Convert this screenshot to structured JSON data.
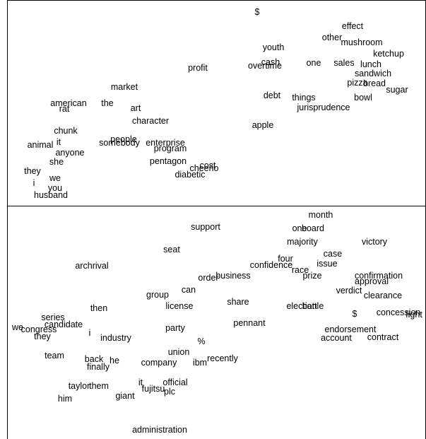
{
  "chart_data": [
    {
      "type": "scatter",
      "title": "",
      "xlabel": "",
      "ylabel": "",
      "axes_visible": false,
      "grid": false,
      "xlim": [
        0,
        600
      ],
      "ylim": [
        0,
        290
      ],
      "points": [
        {
          "label": "$",
          "x": 364,
          "y": 273
        },
        {
          "label": "effect",
          "x": 499,
          "y": 253
        },
        {
          "label": "other",
          "x": 470,
          "y": 237
        },
        {
          "label": "mushroom",
          "x": 512,
          "y": 230
        },
        {
          "label": "youth",
          "x": 387,
          "y": 223
        },
        {
          "label": "ketchup",
          "x": 550,
          "y": 214
        },
        {
          "label": "cash",
          "x": 383,
          "y": 202
        },
        {
          "label": "overtime",
          "x": 375,
          "y": 197
        },
        {
          "label": "one",
          "x": 444,
          "y": 201
        },
        {
          "label": "sales",
          "x": 487,
          "y": 201
        },
        {
          "label": "lunch",
          "x": 525,
          "y": 199
        },
        {
          "label": "sandwich",
          "x": 528,
          "y": 186
        },
        {
          "label": "profit",
          "x": 280,
          "y": 194
        },
        {
          "label": "pizza",
          "x": 506,
          "y": 173
        },
        {
          "label": "bread",
          "x": 530,
          "y": 172
        },
        {
          "label": "sugar",
          "x": 562,
          "y": 163
        },
        {
          "label": "market",
          "x": 176,
          "y": 167
        },
        {
          "label": "debt",
          "x": 385,
          "y": 155
        },
        {
          "label": "things",
          "x": 430,
          "y": 152
        },
        {
          "label": "bowl",
          "x": 514,
          "y": 152
        },
        {
          "label": "american",
          "x": 97,
          "y": 144
        },
        {
          "label": "the",
          "x": 152,
          "y": 144
        },
        {
          "label": "rat",
          "x": 91,
          "y": 136
        },
        {
          "label": "art",
          "x": 192,
          "y": 137
        },
        {
          "label": "jurisprudence",
          "x": 458,
          "y": 138
        },
        {
          "label": "character",
          "x": 213,
          "y": 119
        },
        {
          "label": "apple",
          "x": 372,
          "y": 113
        },
        {
          "label": "chunk",
          "x": 93,
          "y": 105
        },
        {
          "label": "people",
          "x": 175,
          "y": 93
        },
        {
          "label": "it",
          "x": 83,
          "y": 89
        },
        {
          "label": "somebody",
          "x": 169,
          "y": 88
        },
        {
          "label": "enterprise",
          "x": 234,
          "y": 88
        },
        {
          "label": "animal",
          "x": 57,
          "y": 85
        },
        {
          "label": "program",
          "x": 241,
          "y": 80
        },
        {
          "label": "anyone",
          "x": 99,
          "y": 74
        },
        {
          "label": "she",
          "x": 80,
          "y": 61
        },
        {
          "label": "pentagon",
          "x": 238,
          "y": 62
        },
        {
          "label": "cost",
          "x": 294,
          "y": 56
        },
        {
          "label": "cheerio",
          "x": 289,
          "y": 52
        },
        {
          "label": "they",
          "x": 46,
          "y": 48
        },
        {
          "label": "diabetic",
          "x": 269,
          "y": 43
        },
        {
          "label": "we",
          "x": 78,
          "y": 38
        },
        {
          "label": "i",
          "x": 48,
          "y": 31
        },
        {
          "label": "you",
          "x": 78,
          "y": 24
        },
        {
          "label": "husband",
          "x": 72,
          "y": 14
        }
      ]
    },
    {
      "type": "scatter",
      "title": "",
      "xlabel": "",
      "ylabel": "",
      "axes_visible": false,
      "grid": false,
      "xlim": [
        0,
        600
      ],
      "ylim": [
        0,
        330
      ],
      "points": [
        {
          "label": "month",
          "x": 454,
          "y": 317
        },
        {
          "label": "support",
          "x": 291,
          "y": 300
        },
        {
          "label": "one",
          "x": 424,
          "y": 298
        },
        {
          "label": "board",
          "x": 443,
          "y": 298
        },
        {
          "label": "majority",
          "x": 428,
          "y": 279
        },
        {
          "label": "victory",
          "x": 530,
          "y": 279
        },
        {
          "label": "seat",
          "x": 243,
          "y": 268
        },
        {
          "label": "case",
          "x": 471,
          "y": 262
        },
        {
          "label": "four",
          "x": 404,
          "y": 255
        },
        {
          "label": "issue",
          "x": 463,
          "y": 248
        },
        {
          "label": "archrival",
          "x": 130,
          "y": 245
        },
        {
          "label": "confidence",
          "x": 384,
          "y": 246
        },
        {
          "label": "race",
          "x": 425,
          "y": 239
        },
        {
          "label": "business",
          "x": 330,
          "y": 231
        },
        {
          "label": "order",
          "x": 295,
          "y": 228
        },
        {
          "label": "prize",
          "x": 442,
          "y": 231
        },
        {
          "label": "confirmation",
          "x": 536,
          "y": 231
        },
        {
          "label": "approval",
          "x": 526,
          "y": 223
        },
        {
          "label": "can",
          "x": 267,
          "y": 211
        },
        {
          "label": "verdict",
          "x": 494,
          "y": 210
        },
        {
          "label": "group",
          "x": 223,
          "y": 204
        },
        {
          "label": "clearance",
          "x": 542,
          "y": 203
        },
        {
          "label": "share",
          "x": 337,
          "y": 194
        },
        {
          "label": "license",
          "x": 254,
          "y": 188
        },
        {
          "label": "election",
          "x": 427,
          "y": 188
        },
        {
          "label": "battle",
          "x": 443,
          "y": 188
        },
        {
          "label": "then",
          "x": 140,
          "y": 185
        },
        {
          "label": "$",
          "x": 502,
          "y": 177
        },
        {
          "label": "concession",
          "x": 564,
          "y": 179
        },
        {
          "label": "fight",
          "x": 586,
          "y": 176
        },
        {
          "label": "series",
          "x": 75,
          "y": 172
        },
        {
          "label": "pennant",
          "x": 353,
          "y": 164
        },
        {
          "label": "candidate",
          "x": 90,
          "y": 162
        },
        {
          "label": "we",
          "x": 25,
          "y": 158
        },
        {
          "label": "congress",
          "x": 55,
          "y": 155
        },
        {
          "label": "party",
          "x": 248,
          "y": 157
        },
        {
          "label": "endorsement",
          "x": 496,
          "y": 155
        },
        {
          "label": "i",
          "x": 127,
          "y": 150
        },
        {
          "label": "they",
          "x": 60,
          "y": 145
        },
        {
          "label": "industry",
          "x": 164,
          "y": 143
        },
        {
          "label": "account",
          "x": 476,
          "y": 143
        },
        {
          "label": "contract",
          "x": 542,
          "y": 144
        },
        {
          "label": "%",
          "x": 285,
          "y": 138
        },
        {
          "label": "union",
          "x": 253,
          "y": 123
        },
        {
          "label": "team",
          "x": 77,
          "y": 118
        },
        {
          "label": "recently",
          "x": 315,
          "y": 114
        },
        {
          "label": "back",
          "x": 133,
          "y": 113
        },
        {
          "label": "he",
          "x": 162,
          "y": 111
        },
        {
          "label": "company",
          "x": 225,
          "y": 108
        },
        {
          "label": "ibm",
          "x": 283,
          "y": 108
        },
        {
          "label": "finally",
          "x": 139,
          "y": 102
        },
        {
          "label": "official",
          "x": 248,
          "y": 80
        },
        {
          "label": "it",
          "x": 199,
          "y": 80
        },
        {
          "label": "taylor",
          "x": 112,
          "y": 75
        },
        {
          "label": "them",
          "x": 140,
          "y": 75
        },
        {
          "label": "fujitsu",
          "x": 217,
          "y": 71
        },
        {
          "label": "plc",
          "x": 240,
          "y": 67
        },
        {
          "label": "giant",
          "x": 177,
          "y": 61
        },
        {
          "label": "him",
          "x": 92,
          "y": 57
        },
        {
          "label": "administration",
          "x": 226,
          "y": 13
        }
      ]
    }
  ]
}
